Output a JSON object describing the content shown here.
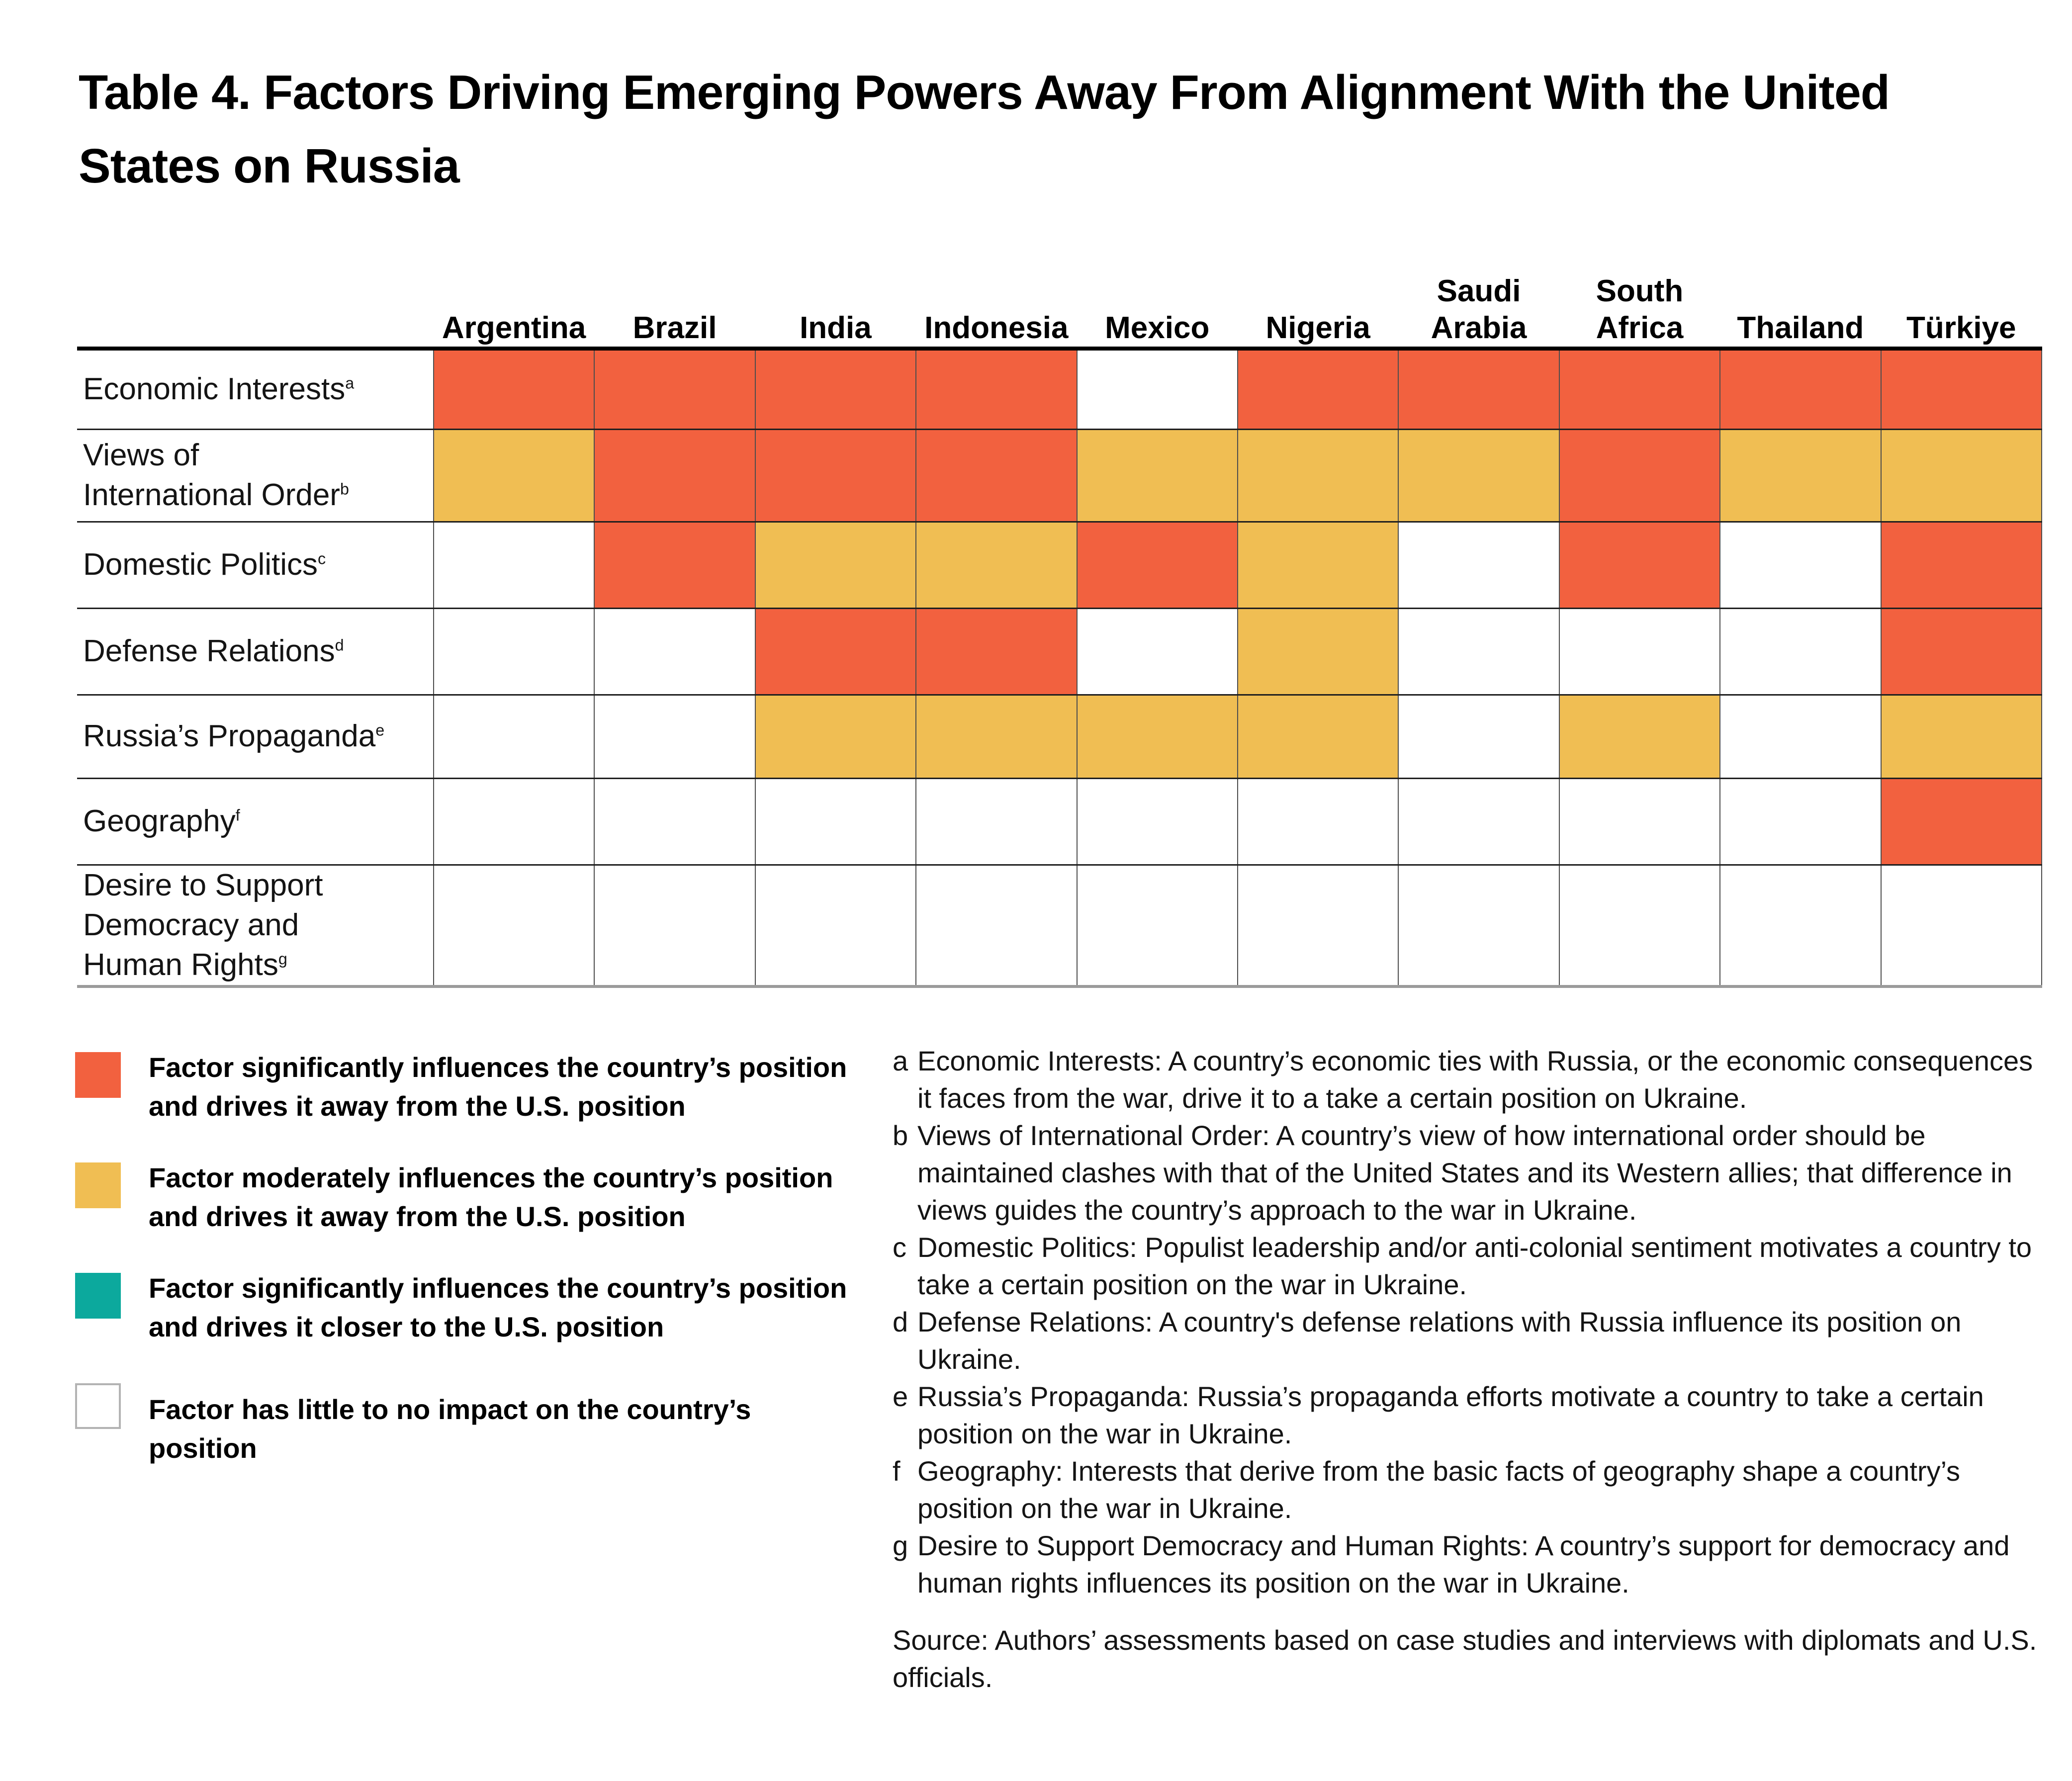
{
  "title": "Table 4. Factors Driving Emerging Powers Away From Alignment With the United States on Russia",
  "colors": {
    "significant_away": "#F2613F",
    "moderate_away": "#F0BE53",
    "significant_closer": "#0CA99D",
    "none": "#FFFFFF",
    "none_swatch_border": "#B3B3B3"
  },
  "table": {
    "columns": [
      {
        "name": "Argentina",
        "lines": [
          "Argentina"
        ]
      },
      {
        "name": "Brazil",
        "lines": [
          "Brazil"
        ]
      },
      {
        "name": "India",
        "lines": [
          "India"
        ]
      },
      {
        "name": "Indonesia",
        "lines": [
          "Indonesia"
        ]
      },
      {
        "name": "Mexico",
        "lines": [
          "Mexico"
        ]
      },
      {
        "name": "Nigeria",
        "lines": [
          "Nigeria"
        ]
      },
      {
        "name": "Saudi Arabia",
        "lines": [
          "Saudi",
          "Arabia"
        ]
      },
      {
        "name": "South Africa",
        "lines": [
          "South",
          "Africa"
        ]
      },
      {
        "name": "Thailand",
        "lines": [
          "Thailand"
        ]
      },
      {
        "name": "Türkiye",
        "lines": [
          "Türkiye"
        ]
      }
    ],
    "rows": [
      {
        "label": "Economic Interests",
        "lines": [
          "Economic Interests"
        ],
        "superscript": "a",
        "cells": [
          "S",
          "S",
          "S",
          "S",
          "N",
          "S",
          "S",
          "S",
          "S",
          "S"
        ]
      },
      {
        "label": "Views of International Order",
        "lines": [
          "Views of",
          "International Order"
        ],
        "superscript": "b",
        "cells": [
          "M",
          "S",
          "S",
          "S",
          "M",
          "M",
          "M",
          "S",
          "M",
          "M"
        ]
      },
      {
        "label": "Domestic Politics",
        "lines": [
          "Domestic Politics"
        ],
        "superscript": "c",
        "cells": [
          "N",
          "S",
          "M",
          "M",
          "S",
          "M",
          "N",
          "S",
          "N",
          "S"
        ]
      },
      {
        "label": "Defense Relations",
        "lines": [
          "Defense Relations"
        ],
        "superscript": "d",
        "cells": [
          "N",
          "N",
          "S",
          "S",
          "N",
          "M",
          "N",
          "N",
          "N",
          "S"
        ]
      },
      {
        "label": "Russia’s Propaganda",
        "lines": [
          "Russia’s Propaganda"
        ],
        "superscript": "e",
        "cells": [
          "N",
          "N",
          "M",
          "M",
          "M",
          "M",
          "N",
          "M",
          "N",
          "M"
        ]
      },
      {
        "label": "Geography",
        "lines": [
          "Geography"
        ],
        "superscript": "f",
        "cells": [
          "N",
          "N",
          "N",
          "N",
          "N",
          "N",
          "N",
          "N",
          "N",
          "S"
        ]
      },
      {
        "label": "Desire to Support Democracy and Human Rights",
        "lines": [
          "Desire to Support",
          "Democracy and",
          "Human Rights"
        ],
        "superscript": "g",
        "cells": [
          "N",
          "N",
          "N",
          "N",
          "N",
          "N",
          "N",
          "N",
          "N",
          "N"
        ]
      }
    ]
  },
  "legend": {
    "items": [
      {
        "code": "S",
        "color": "#F2613F",
        "label": "Factor significantly influences the country’s position and drives it away from the U.S. position"
      },
      {
        "code": "M",
        "color": "#F0BE53",
        "label": "Factor moderately influences the country’s position and drives it away from the U.S. position"
      },
      {
        "code": "C",
        "color": "#0CA99D",
        "label": "Factor significantly influences the country’s position and drives it closer to the U.S. position"
      },
      {
        "code": "N",
        "color": "#FFFFFF",
        "border": "#B3B3B3",
        "label": "Factor has little to no impact on the country’s position"
      }
    ]
  },
  "footnotes": [
    {
      "letter": "a",
      "text": "Economic Interests: A country’s economic ties with Russia, or the economic consequences it faces from the war, drive it to a take a certain position on Ukraine."
    },
    {
      "letter": "b",
      "text": "Views of International Order: A country’s view of how international order should be maintained clashes with that of the United States and its Western allies; that difference in views guides the country’s approach to the war in Ukraine."
    },
    {
      "letter": "c",
      "text": "Domestic Politics: Populist leadership and/or anti-colonial sentiment motivates a country to take a certain position on the war in Ukraine."
    },
    {
      "letter": "d",
      "text": "Defense Relations: A country's defense relations with Russia influence its position on Ukraine."
    },
    {
      "letter": "e",
      "text": "Russia’s Propaganda: Russia’s propaganda efforts motivate a country to take a certain position on the war in Ukraine."
    },
    {
      "letter": "f",
      "text": "Geography: Interests that derive from the basic facts of geography shape a country’s position on the war in Ukraine."
    },
    {
      "letter": "g",
      "text": "Desire to Support Democracy and Human Rights: A country’s support for democracy and human rights influences its position on the war in Ukraine."
    }
  ],
  "source": "Source: Authors’ assessments based on case studies and interviews with diplomats and U.S. officials.",
  "chart_data": {
    "type": "heatmap",
    "title": "Table 4. Factors Driving Emerging Powers Away From Alignment With the United States on Russia",
    "x_categories": [
      "Argentina",
      "Brazil",
      "India",
      "Indonesia",
      "Mexico",
      "Nigeria",
      "Saudi Arabia",
      "South Africa",
      "Thailand",
      "Türkiye"
    ],
    "y_categories": [
      "Economic Interests (a)",
      "Views of International Order (b)",
      "Domestic Politics (c)",
      "Defense Relations (d)",
      "Russia’s Propaganda (e)",
      "Geography (f)",
      "Desire to Support Democracy and Human Rights (g)"
    ],
    "values": [
      [
        "S",
        "S",
        "S",
        "S",
        "N",
        "S",
        "S",
        "S",
        "S",
        "S"
      ],
      [
        "M",
        "S",
        "S",
        "S",
        "M",
        "M",
        "M",
        "S",
        "M",
        "M"
      ],
      [
        "N",
        "S",
        "M",
        "M",
        "S",
        "M",
        "N",
        "S",
        "N",
        "S"
      ],
      [
        "N",
        "N",
        "S",
        "S",
        "N",
        "M",
        "N",
        "N",
        "N",
        "S"
      ],
      [
        "N",
        "N",
        "M",
        "M",
        "M",
        "M",
        "N",
        "M",
        "N",
        "M"
      ],
      [
        "N",
        "N",
        "N",
        "N",
        "N",
        "N",
        "N",
        "N",
        "N",
        "S"
      ],
      [
        "N",
        "N",
        "N",
        "N",
        "N",
        "N",
        "N",
        "N",
        "N",
        "N"
      ]
    ],
    "code_meanings": {
      "S": "Factor significantly influences the country’s position and drives it away from the U.S. position",
      "M": "Factor moderately influences the country’s position and drives it away from the U.S. position",
      "C": "Factor significantly influences the country’s position and drives it closer to the U.S. position",
      "N": "Factor has little to no impact on the country’s position"
    },
    "code_colors": {
      "S": "#F2613F",
      "M": "#F0BE53",
      "C": "#0CA99D",
      "N": "#FFFFFF"
    },
    "legend_position": "bottom-left",
    "grid": true
  }
}
